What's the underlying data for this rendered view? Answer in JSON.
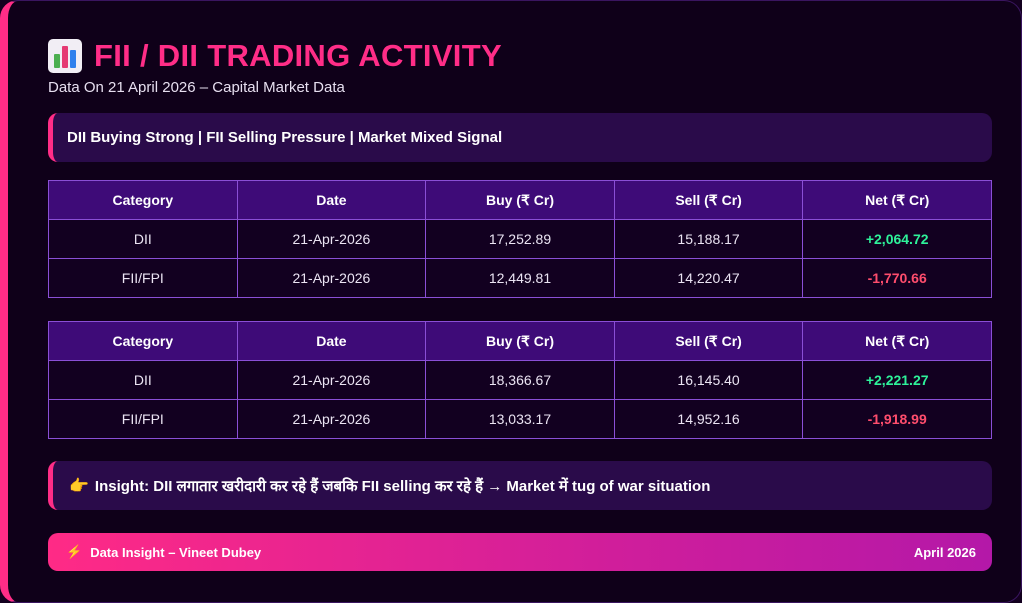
{
  "header": {
    "title": "FII / DII TRADING ACTIVITY",
    "subtitle": "Data On 21 April 2026 – Capital Market Data",
    "icon": "bar-chart-icon"
  },
  "banner": {
    "text": "DII Buying Strong | FII Selling Pressure | Market Mixed Signal"
  },
  "tables": [
    {
      "columns": [
        "Category",
        "Date",
        "Buy (₹ Cr)",
        "Sell (₹ Cr)",
        "Net (₹ Cr)"
      ],
      "rows": [
        {
          "category": "DII",
          "date": "21-Apr-2026",
          "buy": "17,252.89",
          "sell": "15,188.17",
          "net": "+2,064.72"
        },
        {
          "category": "FII/FPI",
          "date": "21-Apr-2026",
          "buy": "12,449.81",
          "sell": "14,220.47",
          "net": "-1,770.66"
        }
      ]
    },
    {
      "columns": [
        "Category",
        "Date",
        "Buy (₹ Cr)",
        "Sell (₹ Cr)",
        "Net (₹ Cr)"
      ],
      "rows": [
        {
          "category": "DII",
          "date": "21-Apr-2026",
          "buy": "18,366.67",
          "sell": "16,145.40",
          "net": "+2,221.27"
        },
        {
          "category": "FII/FPI",
          "date": "21-Apr-2026",
          "buy": "13,033.17",
          "sell": "14,952.16",
          "net": "-1,918.99"
        }
      ]
    }
  ],
  "insight": {
    "icon": "pointing-hand-icon",
    "text": "Insight: DII लगातार खरीदारी कर रहे हैं जबकि FII selling कर रहे हैं → Market में tug of war situation"
  },
  "footer": {
    "icon": "lightning-icon",
    "left": "Data Insight – Vineet Dubey",
    "right": "April 2026"
  },
  "colors": {
    "accent": "#ff2d87",
    "positive": "#2ef29a",
    "negative": "#ff4d6d",
    "header_bg": "#3e0b78"
  }
}
